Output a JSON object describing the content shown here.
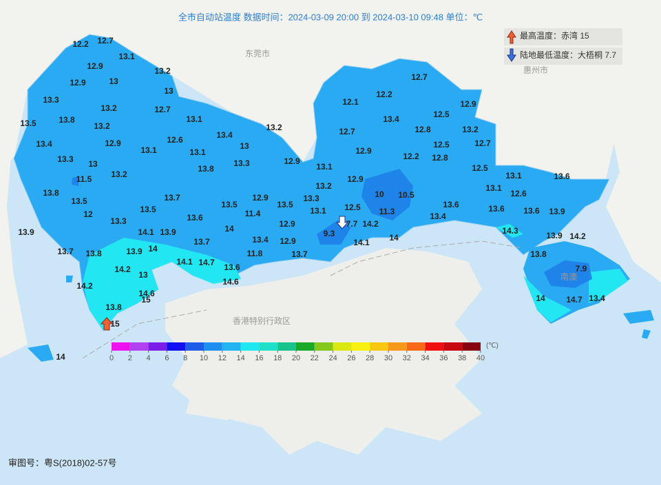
{
  "title": "全市自动站温度  数据时间：2024-03-09 20:00 到 2024-03-10 09:48  单位：℃",
  "legend": {
    "max": "最高温度：赤湾 15",
    "min": "陆地最低温度：大梧桐 7.7"
  },
  "place_labels": [
    "东莞市",
    "惠州市",
    "香港特别行政区",
    "南澳"
  ],
  "stations": [
    12.2,
    12.7,
    13.1,
    12.9,
    13.2,
    12.9,
    13,
    13,
    13.3,
    13.2,
    12.7,
    13.5,
    13.8,
    13.2,
    13.1,
    13.4,
    13.2,
    13.4,
    12.9,
    12.6,
    13.1,
    13.1,
    13,
    13.3,
    13,
    13.8,
    13.3,
    12.9,
    13.1,
    13.2,
    11.5,
    13.2,
    12.9,
    13.8,
    13.7,
    12.9,
    13.5,
    13.5,
    13.5,
    13.3,
    13.1,
    12,
    13.5,
    11.4,
    13.6,
    13.3,
    12.9,
    14,
    14.1,
    13.9,
    13.7,
    13.4,
    12.9,
    13.9,
    13.7,
    13.8,
    13.9,
    14,
    11.8,
    13.7,
    14.1,
    14.7,
    13.6,
    14.2,
    13,
    14.6,
    14.2,
    14.6,
    15,
    13.8,
    15,
    14,
    12.7,
    12.2,
    12.1,
    13.4,
    12.5,
    12.9,
    12.7,
    12.8,
    13.2,
    12.9,
    12.2,
    12.5,
    12.7,
    12.8,
    12.5,
    10,
    10.5,
    12.5,
    11.3,
    7.7,
    14.2,
    9.3,
    14,
    14.1,
    13.4,
    13.6,
    13.1,
    12.6,
    13.1,
    13.6,
    13.6,
    13.6,
    13.9,
    14.3,
    13.9,
    14.2,
    13.8,
    7.9,
    14,
    14.7,
    13.4
  ],
  "colorbar": {
    "ticks": [
      0,
      2,
      4,
      6,
      8,
      10,
      12,
      14,
      16,
      18,
      20,
      22,
      24,
      26,
      28,
      30,
      32,
      34,
      36,
      38,
      40
    ],
    "colors": [
      "#ee10ee",
      "#b040f0",
      "#7a1ee8",
      "#1010f0",
      "#1e5be8",
      "#1e8ef0",
      "#22b4f0",
      "#1de8f0",
      "#1ee0c8",
      "#16c48c",
      "#1aa828",
      "#84c81c",
      "#d8e810",
      "#f8f010",
      "#f8c810",
      "#f89818",
      "#f86818",
      "#f01010",
      "#c80810",
      "#880010"
    ],
    "unit": "(℃)"
  },
  "footer": "审图号：粤S(2018)02-57号"
}
